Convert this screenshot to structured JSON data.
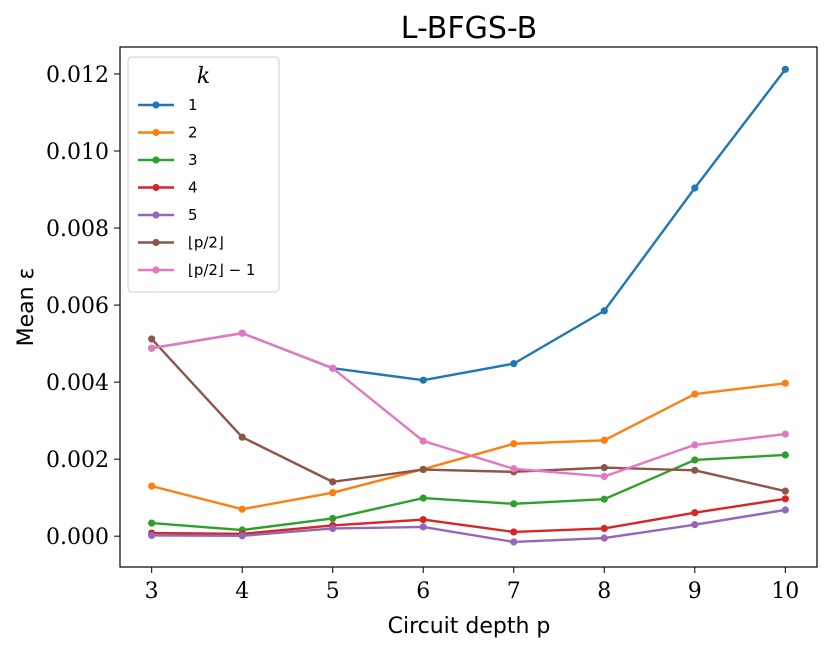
{
  "chart_data": {
    "type": "line",
    "title": "L-BFGS-B",
    "xlabel": "Circuit depth p",
    "ylabel": "Mean ε",
    "x": [
      3,
      4,
      5,
      6,
      7,
      8,
      9,
      10
    ],
    "xlim": [
      2.65,
      10.35
    ],
    "ylim": [
      -0.0008,
      0.0127
    ],
    "yticks": [
      0.0,
      0.002,
      0.004,
      0.006,
      0.008,
      0.01,
      0.012
    ],
    "ytick_labels": [
      "0.000",
      "0.002",
      "0.004",
      "0.006",
      "0.008",
      "0.010",
      "0.012"
    ],
    "xtick_labels": [
      "3",
      "4",
      "5",
      "6",
      "7",
      "8",
      "9",
      "10"
    ],
    "legend": {
      "title": "k",
      "position": "upper-left"
    },
    "series": [
      {
        "name": "1",
        "color": "#1f77b4",
        "values": [
          0.00488,
          0.00527,
          0.00436,
          0.00405,
          0.00448,
          0.00585,
          0.00904,
          0.01212
        ]
      },
      {
        "name": "2",
        "color": "#ff7f0e",
        "values": [
          0.0013,
          0.0007,
          0.00113,
          0.00174,
          0.0024,
          0.00249,
          0.00369,
          0.00397
        ]
      },
      {
        "name": "3",
        "color": "#2ca02c",
        "values": [
          0.00034,
          0.00016,
          0.00046,
          0.00099,
          0.00084,
          0.00096,
          0.00198,
          0.00211
        ]
      },
      {
        "name": "4",
        "color": "#d62728",
        "values": [
          8e-05,
          6e-05,
          0.00028,
          0.00043,
          0.00011,
          0.0002,
          0.00061,
          0.00097
        ]
      },
      {
        "name": "5",
        "color": "#9467bd",
        "values": [
          2e-05,
          1e-05,
          0.0002,
          0.00024,
          -0.00015,
          -5e-05,
          0.0003,
          0.00068
        ]
      },
      {
        "name": "⌊p/2⌋",
        "color": "#8c564b",
        "values": [
          0.00512,
          0.00257,
          0.00141,
          0.00173,
          0.00167,
          0.00178,
          0.00171,
          0.00117
        ]
      },
      {
        "name": "⌊p/2⌋ − 1",
        "color": "#e377c2",
        "values": [
          0.00488,
          0.00527,
          0.00436,
          0.00247,
          0.00175,
          0.00155,
          0.00237,
          0.00265
        ]
      }
    ]
  }
}
